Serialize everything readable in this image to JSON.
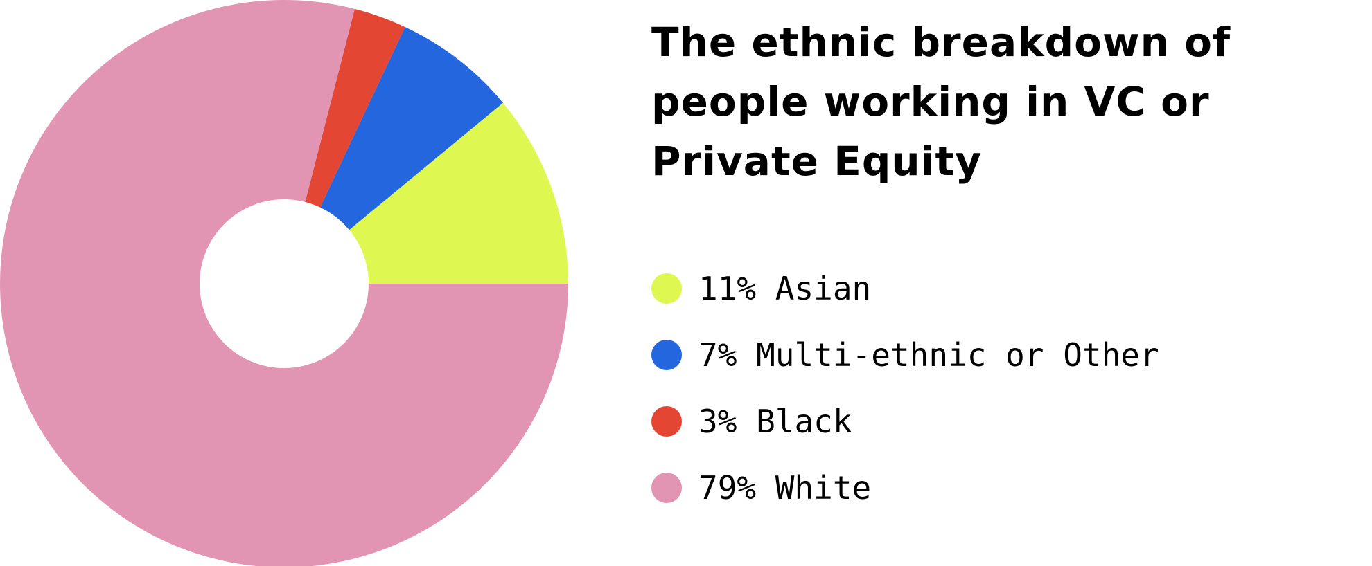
{
  "title": "The ethnic breakdown of people working in VC or Private Equity",
  "chart_data": {
    "type": "pie",
    "style": "donut",
    "start_direction": "east",
    "direction": "counterclockwise",
    "slices": [
      {
        "label": "Asian",
        "value": 11,
        "color": "#dff751"
      },
      {
        "label": "Multi-ethnic or Other",
        "value": 7,
        "color": "#2466dd"
      },
      {
        "label": "Black",
        "value": 3,
        "color": "#e34633"
      },
      {
        "label": "White",
        "value": 79,
        "color": "#e295b3"
      }
    ],
    "legend": {
      "placement": "right",
      "entries": [
        {
          "text": "11% Asian",
          "color": "#dff751"
        },
        {
          "text": "7% Multi-ethnic or Other",
          "color": "#2466dd"
        },
        {
          "text": "3% Black",
          "color": "#e34633"
        },
        {
          "text": "79% White",
          "color": "#e295b3"
        }
      ]
    }
  }
}
